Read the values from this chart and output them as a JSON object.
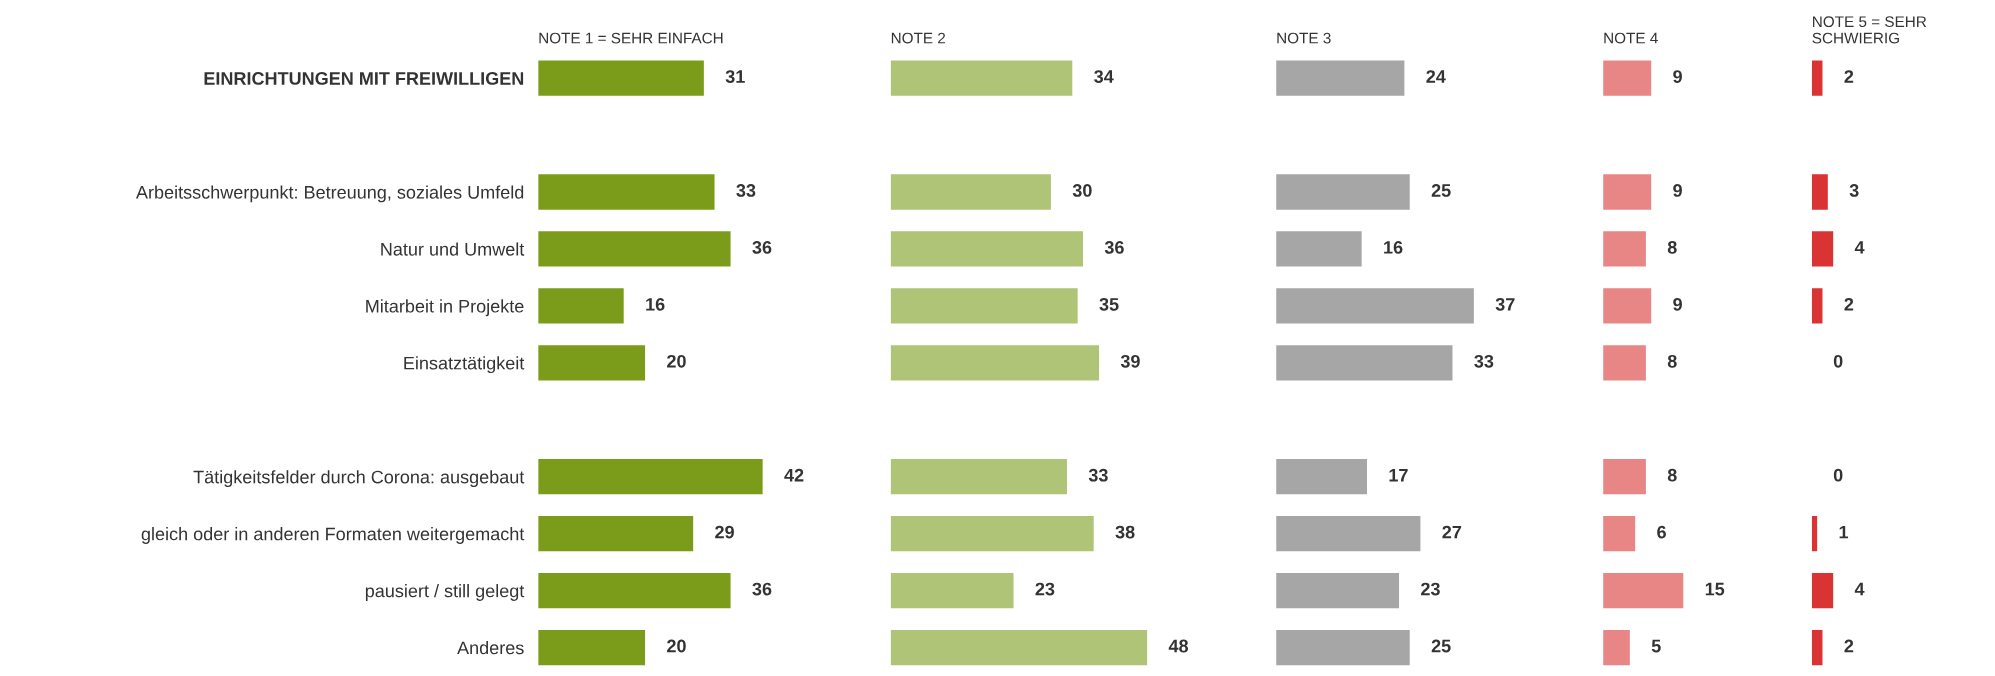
{
  "chart_data": [
    {
      "type": "bar",
      "orientation": "horizontal",
      "title": "NOTE 1 = SEHR EINFACH",
      "categories": [
        "EINRICHTUNGEN MIT FREIWILLIGEN",
        null,
        "Arbeitsschwerpunkt: Betreuung, soziales Umfeld",
        "Natur und Umwelt",
        "Mitarbeit in Projekte",
        "Einsatztätigkeit",
        null,
        "Tätigkeitsfelder durch Corona: ausgebaut",
        "gleich oder in anderen Formaten weitergemacht",
        "pausiert / still gelegt",
        "Anderes"
      ],
      "values": [
        31,
        null,
        33,
        36,
        16,
        20,
        null,
        42,
        29,
        36,
        20
      ],
      "color": "#7a9c1a",
      "data_labels": true
    },
    {
      "type": "bar",
      "orientation": "horizontal",
      "title": "NOTE 2",
      "values": [
        34,
        null,
        30,
        36,
        35,
        39,
        null,
        33,
        38,
        23,
        48
      ],
      "color": "#afc476",
      "data_labels": true
    },
    {
      "type": "bar",
      "orientation": "horizontal",
      "title": "NOTE 3",
      "values": [
        24,
        null,
        25,
        16,
        37,
        33,
        null,
        17,
        27,
        23,
        25
      ],
      "color": "#a6a6a6",
      "data_labels": true
    },
    {
      "type": "bar",
      "orientation": "horizontal",
      "title": "NOTE 4",
      "values": [
        9,
        null,
        9,
        8,
        9,
        8,
        null,
        8,
        6,
        15,
        5
      ],
      "color": "#e88585",
      "data_labels": true
    },
    {
      "type": "bar",
      "orientation": "horizontal",
      "title": "NOTE 5 = SEHR SCHWIERIG",
      "values": [
        2,
        null,
        3,
        4,
        2,
        0,
        null,
        0,
        1,
        4,
        2
      ],
      "color": "#d93333",
      "data_labels": true
    }
  ]
}
